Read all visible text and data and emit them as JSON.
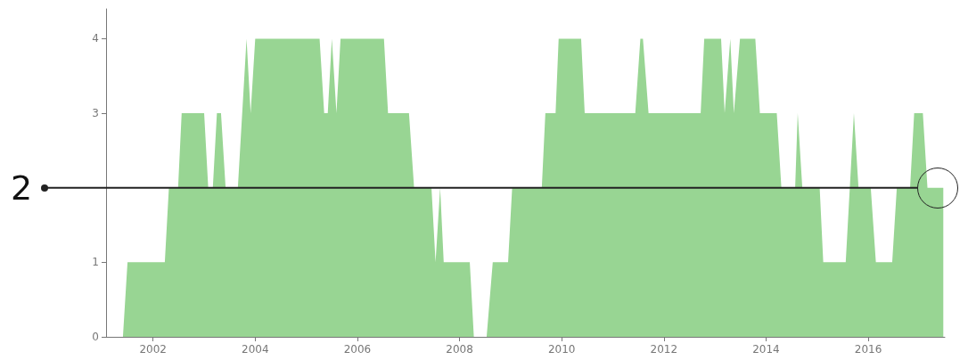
{
  "chart_data": {
    "type": "area",
    "color": "#98d593",
    "x": [
      2001.41,
      2001.5,
      2002.23,
      2002.31,
      2002.49,
      2002.56,
      2003.0,
      2003.08,
      2003.17,
      2003.25,
      2003.33,
      2003.42,
      2003.66,
      2003.83,
      2003.91,
      2004.0,
      2005.26,
      2005.35,
      2005.42,
      2005.5,
      2005.59,
      2005.67,
      2006.52,
      2006.6,
      2007.01,
      2007.11,
      2007.45,
      2007.53,
      2007.62,
      2007.69,
      2008.2,
      2008.28,
      2008.53,
      2008.65,
      2008.95,
      2009.03,
      2009.61,
      2009.68,
      2009.88,
      2009.94,
      2010.38,
      2010.45,
      2011.44,
      2011.54,
      2011.59,
      2011.7,
      2012.72,
      2012.79,
      2013.12,
      2013.19,
      2013.3,
      2013.37,
      2013.49,
      2013.79,
      2013.88,
      2014.21,
      2014.3,
      2014.57,
      2014.62,
      2014.71,
      2015.05,
      2015.12,
      2015.56,
      2015.72,
      2015.81,
      2016.05,
      2016.15,
      2016.47,
      2016.56,
      2016.82,
      2016.9,
      2017.07,
      2017.16,
      2017.47
    ],
    "values": [
      0,
      1,
      1,
      2,
      2,
      3,
      3,
      2,
      2,
      3,
      3,
      2,
      2,
      4,
      3,
      4,
      4,
      3,
      3,
      4,
      3,
      4,
      4,
      3,
      3,
      2,
      2,
      1,
      2,
      1,
      1,
      0,
      0,
      1,
      1,
      2,
      2,
      3,
      3,
      4,
      4,
      3,
      3,
      4,
      4,
      3,
      3,
      4,
      4,
      3,
      4,
      3,
      4,
      4,
      3,
      3,
      2,
      2,
      3,
      2,
      2,
      1,
      1,
      3,
      2,
      2,
      1,
      1,
      2,
      2,
      3,
      3,
      2,
      2
    ],
    "xlim": [
      2001.08,
      2017.5
    ],
    "xticks": [
      2002,
      2004,
      2006,
      2008,
      2010,
      2012,
      2014,
      2016
    ],
    "ylim": [
      0,
      4.4
    ],
    "yticks": [
      0,
      1,
      3,
      4
    ],
    "ref_lines": [
      {
        "axis": "y",
        "value": 2,
        "label": "2",
        "color": "#222222"
      }
    ]
  }
}
